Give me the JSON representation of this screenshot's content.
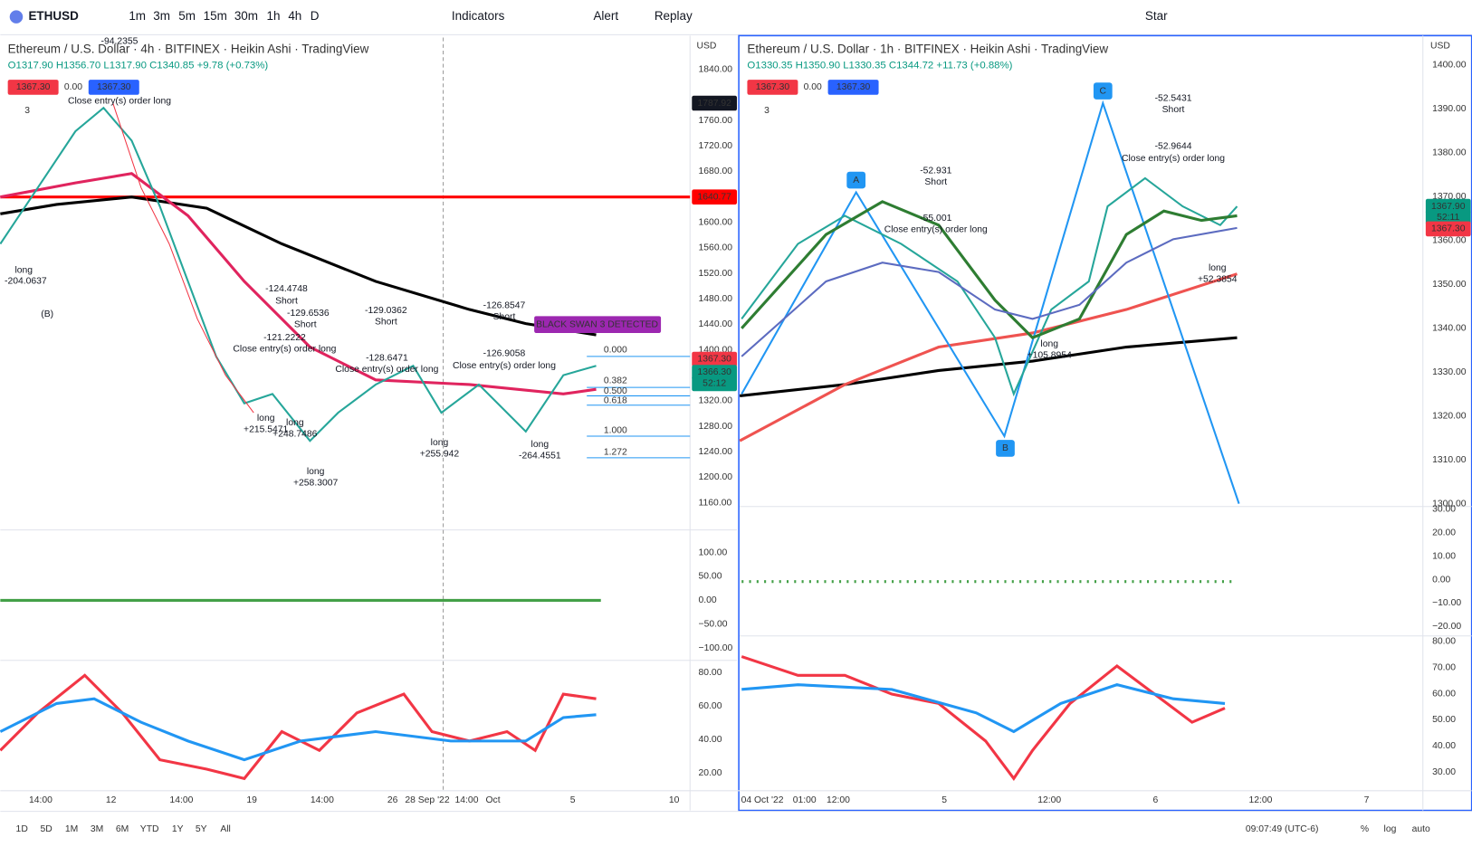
{
  "toolbar": {
    "symbol": "ETHUSD",
    "intervals": [
      "1m",
      "3m",
      "5m",
      "15m",
      "30m",
      "1h",
      "4h",
      "D"
    ],
    "indicators": "Indicators",
    "alert": "Alert",
    "replay": "Replay",
    "star": "Star"
  },
  "left": {
    "title": "Ethereum / U.S. Dollar · 4h · BITFINEX · Heikin Ashi · TradingView",
    "ohlc": "O1317.90 H1356.70 L1317.90 C1340.85 +9.78 (+0.73%)",
    "badges": [
      "1367.30",
      "0.00",
      "1367.30"
    ],
    "layers": "3",
    "currency": "USD",
    "price_ticks": [
      "1840.00",
      "1760.00",
      "1720.00",
      "1680.00",
      "1600.00",
      "1560.00",
      "1520.00",
      "1480.00",
      "1440.00",
      "1400.00",
      "1320.00",
      "1280.00",
      "1240.00",
      "1200.00",
      "1160.00"
    ],
    "price_tags": [
      "1787.92",
      "1640.77",
      "1367.30",
      "1366.30",
      "52:12"
    ],
    "osc_ticks": [
      "100.00",
      "50.00",
      "0.00",
      "−50.00",
      "−100.00"
    ],
    "rsi_ticks": [
      "80.00",
      "60.00",
      "40.00",
      "20.00"
    ],
    "time_ticks": [
      "14:00",
      "12",
      "14:00",
      "19",
      "14:00",
      "26",
      "28 Sep '22",
      "14:00",
      "Oct",
      "5",
      "10"
    ],
    "fib": [
      "0.000",
      "0.382",
      "0.500",
      "0.618",
      "1.000",
      "1.272"
    ],
    "banner": "BLACK SWAN 3 DETECTED",
    "annotations": [
      "-94.2355",
      "Close entry(s) order long",
      "long",
      "-204.0637",
      "(B)",
      "-124.4748",
      "Short",
      "-129.6536",
      "Short",
      "-121.2222",
      "Close entry(s) order long",
      "-129.0362",
      "Short",
      "-128.6471",
      "Close entry(s) order long",
      "-126.8547",
      "Short",
      "-126.9058",
      "Close entry(s) order long",
      "long",
      "+215.5471",
      "long",
      "+248.7486",
      "long",
      "+258.3007",
      "long",
      "+255.942",
      "long",
      "-264.4551"
    ]
  },
  "right": {
    "title": "Ethereum / U.S. Dollar · 1h · BITFINEX · Heikin Ashi · TradingView",
    "ohlc": "O1330.35 H1350.90 L1330.35 C1344.72 +11.73 (+0.88%)",
    "badges": [
      "1367.30",
      "0.00",
      "1367.30"
    ],
    "layers": "3",
    "currency": "USD",
    "price_ticks": [
      "1400.00",
      "1390.00",
      "1380.00",
      "1370.00",
      "1360.00",
      "1350.00",
      "1340.00",
      "1330.00",
      "1320.00",
      "1310.00",
      "1300.00"
    ],
    "price_tags": [
      "1367.90",
      "52:11",
      "1367.30"
    ],
    "osc_ticks": [
      "30.00",
      "20.00",
      "10.00",
      "0.00",
      "−10.00",
      "−20.00"
    ],
    "rsi_ticks": [
      "80.00",
      "70.00",
      "60.00",
      "50.00",
      "40.00",
      "30.00"
    ],
    "time_ticks": [
      "04 Oct '22",
      "01:00",
      "12:00",
      "5",
      "12:00",
      "6",
      "12:00",
      "7"
    ],
    "points": [
      "A",
      "B",
      "C"
    ],
    "annotations": [
      "-52.931",
      "Short",
      "-55.001",
      "Close entry(s) order long",
      "-52.5431",
      "Short",
      "-52.9644",
      "Close entry(s) order long",
      "long",
      "+105.8954",
      "long",
      "+52.3854"
    ]
  },
  "bottom": {
    "ranges": [
      "1D",
      "5D",
      "1M",
      "3M",
      "6M",
      "YTD",
      "1Y",
      "5Y",
      "All"
    ],
    "clock": "09:07:49 (UTC-6)",
    "percent": "%",
    "log": "log",
    "auto": "auto"
  }
}
